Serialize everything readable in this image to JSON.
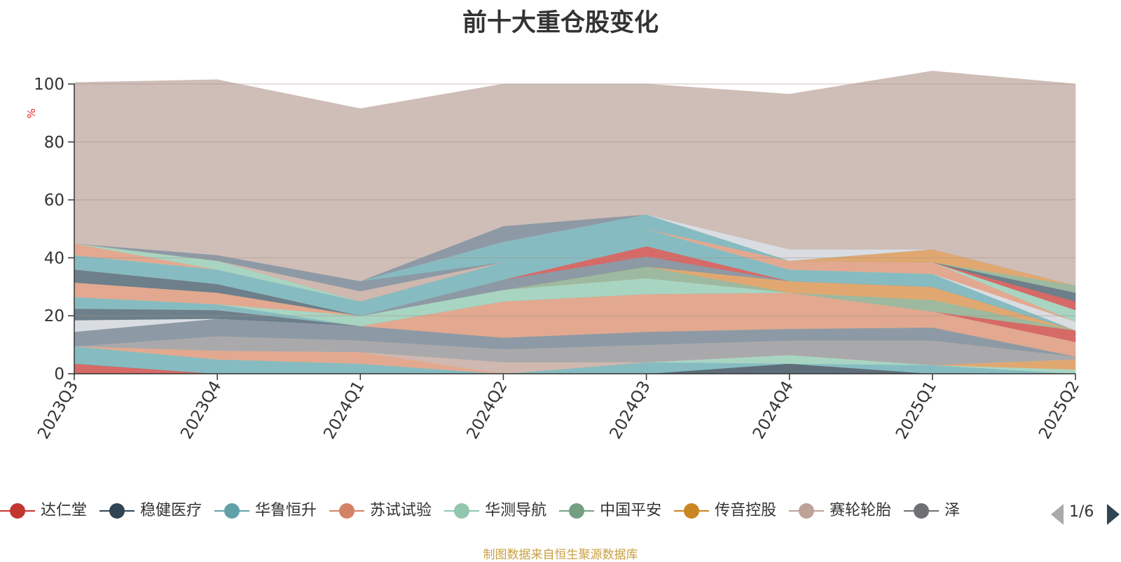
{
  "title": "前十大重仓股变化",
  "footer": "制图数据来自恒生聚源数据库",
  "pager": {
    "text": "1/6"
  },
  "chart_data": {
    "type": "area",
    "stacked": true,
    "unit": "%",
    "categories": [
      "2023Q3",
      "2023Q4",
      "2024Q1",
      "2024Q2",
      "2024Q3",
      "2024Q4",
      "2025Q1",
      "2025Q2"
    ],
    "ylim": [
      0,
      100
    ],
    "yticks": [
      0,
      20,
      40,
      60,
      80,
      100
    ],
    "grid": true,
    "legend_placement": "bottom",
    "legend": [
      {
        "name": "达仁堂",
        "color": "#c23531"
      },
      {
        "name": "稳健医疗",
        "color": "#2f4554"
      },
      {
        "name": "华鲁恒升",
        "color": "#61a0a8"
      },
      {
        "name": "苏试试验",
        "color": "#d48265"
      },
      {
        "name": "华测导航",
        "color": "#91c7ae"
      },
      {
        "name": "中国平安",
        "color": "#749f83"
      },
      {
        "name": "传音控股",
        "color": "#ca8622"
      },
      {
        "name": "赛轮轮胎",
        "color": "#bda29a"
      },
      {
        "name": "泽",
        "color": "#6e7074"
      }
    ],
    "series": [
      {
        "color": "#d66a67",
        "values": [
          3.5,
          0,
          0,
          0,
          0,
          0,
          0,
          0
        ]
      },
      {
        "color": "#5e6d78",
        "values": [
          0,
          0,
          0,
          0,
          0,
          3.5,
          0,
          0
        ]
      },
      {
        "color": "#86bcc1",
        "values": [
          6,
          5,
          3.5,
          0,
          4,
          0,
          3,
          0
        ]
      },
      {
        "color": "#a8d5c2",
        "values": [
          0,
          0,
          0,
          0,
          0,
          3,
          0,
          1.5
        ]
      },
      {
        "color": "#e0a870",
        "values": [
          0,
          0,
          0,
          0,
          0,
          0,
          0,
          3.5
        ]
      },
      {
        "color": "#e2a990",
        "values": [
          0,
          3,
          4,
          0,
          0,
          0,
          0,
          0
        ]
      },
      {
        "color": "#cfb8b0",
        "values": [
          0,
          0,
          0,
          4,
          0,
          0,
          0,
          0
        ]
      },
      {
        "color": "#a9a9ab",
        "values": [
          0,
          5,
          4,
          4.5,
          6,
          5,
          8.5,
          1
        ]
      },
      {
        "color": "#8d9aa5",
        "values": [
          5,
          6,
          5,
          4,
          4.5,
          4,
          4.5,
          0
        ]
      },
      {
        "color": "#d9dde2",
        "values": [
          4,
          0,
          0,
          0,
          0,
          0,
          0,
          0
        ]
      },
      {
        "color": "#6c7f8a",
        "values": [
          4,
          3,
          0,
          0,
          0,
          0,
          0,
          0
        ]
      },
      {
        "color": "#e2a990",
        "values": [
          0,
          0,
          0,
          12.5,
          13,
          12.5,
          5.5,
          5
        ]
      },
      {
        "color": "#d66a67",
        "values": [
          0,
          0,
          0,
          0,
          0,
          0,
          0,
          4
        ]
      },
      {
        "color": "#86bcc1",
        "values": [
          4,
          2,
          0,
          0,
          0,
          0,
          0,
          0
        ]
      },
      {
        "color": "#a8d5c2",
        "values": [
          0,
          0,
          3.5,
          4,
          5.5,
          0,
          0,
          0
        ]
      },
      {
        "color": "#e2a990",
        "values": [
          5,
          4,
          0,
          0,
          0,
          0,
          0,
          0
        ]
      },
      {
        "color": "#9db99f",
        "values": [
          0,
          0,
          0,
          0,
          4,
          0,
          4,
          0
        ]
      },
      {
        "color": "#e0a870",
        "values": [
          0,
          0,
          0,
          0,
          0,
          4,
          4.5,
          0
        ]
      },
      {
        "color": "#6c7f8a",
        "values": [
          4.5,
          3,
          0,
          0,
          0,
          0,
          0,
          0
        ]
      },
      {
        "color": "#8d9aa5",
        "values": [
          0,
          0,
          0,
          3.5,
          3.5,
          0,
          0,
          0
        ]
      },
      {
        "color": "#d66a67",
        "values": [
          0,
          0,
          0,
          0,
          3.5,
          0,
          0,
          0
        ]
      },
      {
        "color": "#86bcc1",
        "values": [
          5,
          5,
          5,
          6,
          6,
          4,
          4.5,
          0
        ]
      },
      {
        "color": "#d9dde2",
        "values": [
          0,
          0,
          0,
          0,
          0,
          0,
          0,
          3
        ]
      },
      {
        "color": "#e2a990",
        "values": [
          4,
          0,
          0,
          0,
          0,
          3,
          4,
          0
        ]
      },
      {
        "color": "#a8d5c2",
        "values": [
          0,
          3,
          0,
          0,
          0,
          0,
          0,
          4
        ]
      },
      {
        "color": "#d66a67",
        "values": [
          0,
          0,
          0,
          0,
          0,
          0,
          0,
          3
        ]
      },
      {
        "color": "#6c7f8a",
        "values": [
          0,
          0,
          0,
          0,
          0,
          0,
          0,
          3
        ]
      },
      {
        "color": "#9db99f",
        "values": [
          0,
          0,
          0,
          0,
          0,
          0,
          0,
          2.5
        ]
      },
      {
        "color": "#e0a870",
        "values": [
          0,
          0,
          0,
          0,
          0,
          0,
          4.5,
          0
        ]
      },
      {
        "color": "#cfb8b0",
        "values": [
          0,
          0,
          3.5,
          0,
          0,
          0,
          0,
          0
        ]
      },
      {
        "color": "#8d9aa5",
        "values": [
          0,
          2,
          3.5,
          0,
          0,
          0,
          0,
          0
        ]
      },
      {
        "color": "#86bcc1",
        "values": [
          0,
          0,
          0,
          7,
          5,
          0,
          0,
          0
        ]
      },
      {
        "color": "#d9dde2",
        "values": [
          0,
          0,
          0,
          0,
          0,
          4,
          0,
          0
        ]
      },
      {
        "color": "#8d9aa5",
        "values": [
          0,
          0,
          0,
          5.5,
          0,
          0,
          0,
          0
        ]
      },
      {
        "color": "#cfbdb7",
        "values": [
          55.5,
          60.5,
          59.5,
          49,
          45,
          53.5,
          61.5,
          69.5
        ]
      }
    ]
  }
}
